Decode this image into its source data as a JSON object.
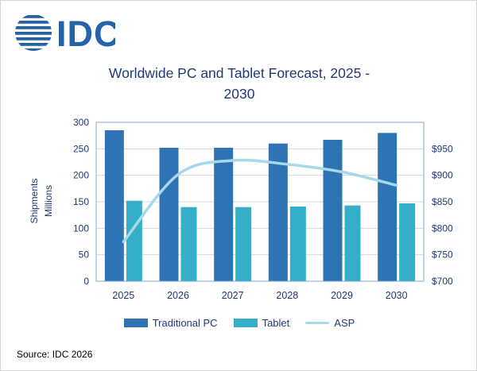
{
  "logo": {
    "text": "IDC"
  },
  "title": {
    "line1": "Worldwide PC and Tablet Forecast, 2025 -",
    "line2": "2030"
  },
  "source": "Source: IDC 2026",
  "colors": {
    "pc": "#2e74b5",
    "tablet": "#35aec7",
    "asp": "#a6d9ea",
    "title_text": "#203874",
    "axis_text": "#203874",
    "grid": "#d9d9d9",
    "plot_border": "#7da7d9",
    "logo": "#2563a8"
  },
  "chart_data": {
    "type": "bar",
    "subtype": "grouped bars with secondary-axis line",
    "title": "Worldwide PC and Tablet Forecast, 2025 - 2030",
    "categories": [
      "2025",
      "2026",
      "2027",
      "2028",
      "2029",
      "2030"
    ],
    "series": [
      {
        "name": "Traditional PC",
        "type": "bar",
        "axis": "left",
        "values": [
          285,
          252,
          252,
          260,
          267,
          280
        ]
      },
      {
        "name": "Tablet",
        "type": "bar",
        "axis": "left",
        "values": [
          152,
          140,
          140,
          141,
          143,
          147
        ]
      },
      {
        "name": "ASP",
        "type": "line",
        "axis": "right",
        "values": [
          762,
          868,
          890,
          884,
          872,
          851
        ]
      }
    ],
    "left_axis": {
      "label_line1": "Shipments",
      "label_line2": "Millions",
      "min": 0,
      "max": 300,
      "step": 50,
      "ticks": [
        "0",
        "50",
        "100",
        "150",
        "200",
        "250",
        "300"
      ]
    },
    "right_axis": {
      "min": 700,
      "max": 950,
      "step": 50,
      "ticks": [
        "$700",
        "$750",
        "$800",
        "$850",
        "$900",
        "$950"
      ]
    },
    "grid": true,
    "legend_position": "bottom",
    "legend": [
      {
        "label": "Traditional PC",
        "swatch": "pc"
      },
      {
        "label": "Tablet",
        "swatch": "tablet"
      },
      {
        "label": "ASP",
        "swatch": "asp"
      }
    ]
  }
}
